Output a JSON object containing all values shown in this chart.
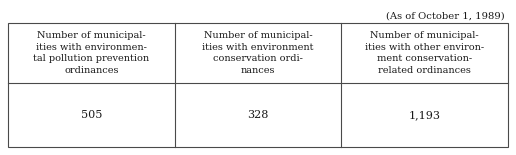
{
  "note": "(As of October 1, 1989)",
  "headers": [
    "Number of municipal-\nities with environmen-\ntal pollution prevention\nordinances",
    "Number of municipal-\nities with environment\nconservation ordi-\nnances",
    "Number of municipal-\nities with other environ-\nment conservation-\nrelated ordinances"
  ],
  "values": [
    "505",
    "328",
    "1,193"
  ],
  "bg_color": "#ffffff",
  "border_color": "#4a4a4a",
  "text_color": "#1a1a1a",
  "header_fontsize": 7.0,
  "value_fontsize": 8.0,
  "note_fontsize": 7.2,
  "fig_width": 5.16,
  "fig_height": 1.55,
  "dpi": 100
}
